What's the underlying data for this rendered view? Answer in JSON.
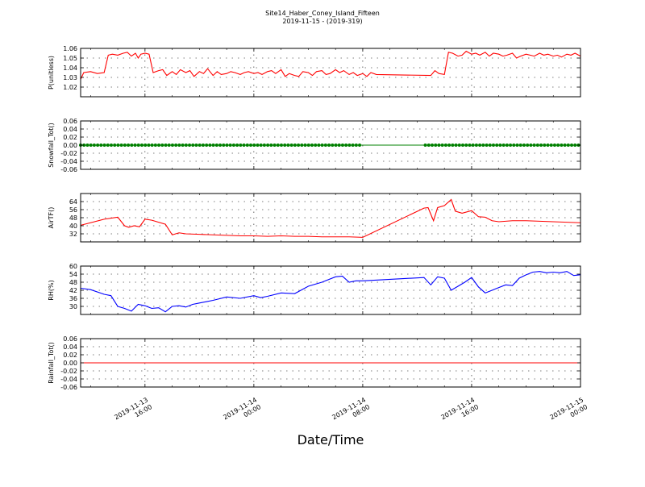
{
  "figure": {
    "title_line1": "Site14_Haber_Coney_Island_Fifteen",
    "title_line2": "2019-11-15 - (2019-319)",
    "xlabel": "Date/Time",
    "x_ticks": [
      {
        "value": 16,
        "line1": "2019-11-13",
        "line2": "16:00"
      },
      {
        "value": 24,
        "line1": "2019-11-14",
        "line2": "00:00"
      },
      {
        "value": 32,
        "line1": "2019-11-14",
        "line2": "08:00"
      },
      {
        "value": 40,
        "line1": "2019-11-14",
        "line2": "16:00"
      },
      {
        "value": 48,
        "line1": "2019-11-15",
        "line2": "00:00"
      }
    ]
  },
  "chart_data": [
    {
      "type": "line",
      "ylabel": "P(unitless)",
      "color": "#ff0000",
      "ylim": [
        1.01,
        1.06
      ],
      "y_ticks": [
        "1.06",
        "1.05",
        "1.04",
        "1.03",
        "1.02"
      ],
      "y_tick_values": [
        1.06,
        1.05,
        1.04,
        1.03,
        1.02
      ],
      "marker": false,
      "x": [
        11.27,
        11.5,
        12.0,
        12.5,
        13.0,
        13.3,
        13.6,
        14.0,
        14.4,
        14.7,
        15.0,
        15.3,
        15.5,
        15.7,
        16.0,
        16.3,
        16.6,
        17.0,
        17.3,
        17.6,
        18.0,
        18.3,
        18.6,
        19.0,
        19.3,
        19.6,
        20.0,
        20.3,
        20.6,
        21.0,
        21.3,
        21.6,
        22.0,
        22.3,
        22.6,
        23.0,
        23.3,
        23.6,
        24.0,
        24.3,
        24.6,
        25.0,
        25.3,
        25.6,
        26.0,
        26.3,
        26.6,
        27.0,
        27.3,
        27.6,
        28.0,
        28.3,
        28.6,
        29.0,
        29.3,
        29.6,
        30.0,
        30.3,
        30.6,
        31.0,
        31.3,
        31.6,
        32.0,
        32.3,
        32.6,
        33.0,
        37.0,
        37.3,
        37.6,
        38.0,
        38.3,
        38.6,
        39.0,
        39.3,
        39.6,
        40.0,
        40.3,
        40.6,
        41.0,
        41.3,
        41.6,
        42.0,
        42.3,
        42.6,
        43.0,
        43.3,
        43.6,
        44.0,
        44.3,
        44.6,
        45.0,
        45.3,
        45.6,
        46.0,
        46.3,
        46.6,
        47.0,
        47.3,
        47.6,
        48.0
      ],
      "y": [
        1.028,
        1.035,
        1.036,
        1.034,
        1.035,
        1.053,
        1.054,
        1.053,
        1.055,
        1.056,
        1.052,
        1.055,
        1.05,
        1.054,
        1.055,
        1.054,
        1.035,
        1.037,
        1.038,
        1.032,
        1.036,
        1.033,
        1.038,
        1.035,
        1.037,
        1.031,
        1.036,
        1.034,
        1.039,
        1.032,
        1.036,
        1.033,
        1.034,
        1.036,
        1.035,
        1.033,
        1.035,
        1.036,
        1.034,
        1.035,
        1.033,
        1.036,
        1.037,
        1.034,
        1.038,
        1.031,
        1.034,
        1.032,
        1.031,
        1.036,
        1.035,
        1.032,
        1.036,
        1.037,
        1.033,
        1.034,
        1.038,
        1.035,
        1.037,
        1.033,
        1.035,
        1.032,
        1.034,
        1.031,
        1.035,
        1.033,
        1.032,
        1.037,
        1.034,
        1.033,
        1.056,
        1.055,
        1.052,
        1.053,
        1.057,
        1.054,
        1.055,
        1.053,
        1.056,
        1.052,
        1.055,
        1.054,
        1.052,
        1.053,
        1.055,
        1.05,
        1.052,
        1.054,
        1.053,
        1.052,
        1.055,
        1.053,
        1.054,
        1.052,
        1.053,
        1.051,
        1.054,
        1.053,
        1.055,
        1.052
      ]
    },
    {
      "type": "line",
      "ylabel": "Snowfall_Tot()",
      "color": "#008000",
      "ylim": [
        -0.06,
        0.06
      ],
      "y_ticks": [
        "0.06",
        "0.04",
        "0.02",
        "0.00",
        "-0.02",
        "-0.04",
        "-0.06"
      ],
      "y_tick_values": [
        0.06,
        0.04,
        0.02,
        0.0,
        -0.02,
        -0.04,
        -0.06
      ],
      "marker": true,
      "marker_segments": [
        [
          11.27,
          32.0
        ],
        [
          36.6,
          48.0
        ]
      ],
      "x": [
        11.27,
        48.0
      ],
      "y": [
        0.0,
        0.0
      ]
    },
    {
      "type": "line",
      "ylabel": "AirTF()",
      "color": "#ff0000",
      "ylim": [
        24,
        72
      ],
      "y_ticks": [
        "64",
        "56",
        "48",
        "40",
        "32"
      ],
      "y_tick_values": [
        64,
        56,
        48,
        40,
        32
      ],
      "marker": false,
      "x": [
        11.27,
        12.0,
        13.0,
        14.0,
        14.5,
        14.8,
        15.2,
        15.6,
        16.0,
        16.5,
        17.0,
        17.5,
        18.0,
        18.5,
        19.0,
        20.0,
        21.0,
        22.0,
        23.0,
        24.0,
        25.0,
        26.0,
        27.0,
        28.0,
        29.0,
        30.0,
        31.0,
        32.0,
        36.5,
        36.8,
        37.2,
        37.5,
        38.0,
        38.5,
        38.8,
        39.3,
        40.0,
        40.5,
        41.0,
        41.5,
        42.0,
        43.0,
        44.0,
        45.0,
        46.0,
        47.0,
        48.0
      ],
      "y": [
        40.5,
        43.0,
        46.5,
        48.5,
        40.0,
        38.5,
        40.0,
        39.0,
        46.5,
        45.5,
        43.5,
        41.5,
        31.0,
        33.0,
        32.0,
        31.5,
        31.0,
        30.5,
        30.0,
        30.0,
        29.5,
        30.0,
        29.5,
        29.5,
        29.0,
        29.0,
        29.0,
        28.5,
        57.5,
        58.0,
        45.0,
        58.0,
        60.0,
        66.0,
        54.5,
        52.5,
        55.0,
        49.0,
        48.5,
        45.0,
        44.0,
        45.0,
        45.0,
        44.5,
        44.0,
        43.5,
        43.0
      ]
    },
    {
      "type": "line",
      "ylabel": "RH(%)",
      "color": "#0000ff",
      "ylim": [
        24,
        60
      ],
      "y_ticks": [
        "60",
        "54",
        "48",
        "42",
        "36",
        "30"
      ],
      "y_tick_values": [
        60,
        54,
        48,
        42,
        36,
        30
      ],
      "marker": false,
      "x": [
        11.27,
        12.0,
        13.0,
        13.5,
        14.0,
        14.5,
        15.0,
        15.5,
        16.0,
        16.5,
        17.0,
        17.5,
        18.0,
        18.5,
        19.0,
        19.5,
        20.0,
        20.5,
        21.0,
        22.0,
        23.0,
        24.0,
        24.5,
        25.0,
        26.0,
        27.0,
        28.0,
        29.0,
        30.0,
        30.5,
        31.0,
        31.5,
        32.0,
        36.5,
        37.0,
        37.5,
        38.0,
        38.5,
        39.0,
        39.5,
        40.0,
        40.5,
        41.0,
        41.5,
        42.0,
        42.5,
        43.0,
        43.5,
        44.0,
        44.5,
        45.0,
        45.5,
        46.0,
        46.5,
        47.0,
        47.5,
        48.0
      ],
      "y": [
        43.5,
        42.5,
        39.0,
        38.0,
        30.0,
        28.5,
        26.5,
        31.5,
        30.5,
        28.5,
        29.0,
        26.0,
        30.0,
        30.5,
        29.5,
        31.5,
        32.5,
        33.5,
        34.5,
        37.0,
        36.0,
        38.0,
        36.5,
        37.5,
        40.0,
        39.5,
        45.0,
        48.0,
        52.0,
        52.5,
        48.0,
        49.0,
        49.0,
        51.5,
        46.0,
        52.0,
        51.0,
        42.0,
        45.0,
        48.0,
        51.5,
        44.5,
        40.0,
        42.0,
        44.0,
        46.0,
        45.5,
        51.0,
        53.5,
        55.5,
        56.0,
        55.0,
        55.5,
        55.0,
        56.0,
        53.0,
        53.5
      ]
    },
    {
      "type": "line",
      "ylabel": "Rainfall_Tot()",
      "color": "#ff0000",
      "ylim": [
        -0.06,
        0.06
      ],
      "y_ticks": [
        "0.06",
        "0.04",
        "0.02",
        "0.00",
        "-0.02",
        "-0.04",
        "-0.06"
      ],
      "y_tick_values": [
        0.06,
        0.04,
        0.02,
        0.0,
        -0.02,
        -0.04,
        -0.06
      ],
      "marker": false,
      "x": [
        11.27,
        48.0
      ],
      "y": [
        0.0,
        0.0
      ]
    }
  ]
}
